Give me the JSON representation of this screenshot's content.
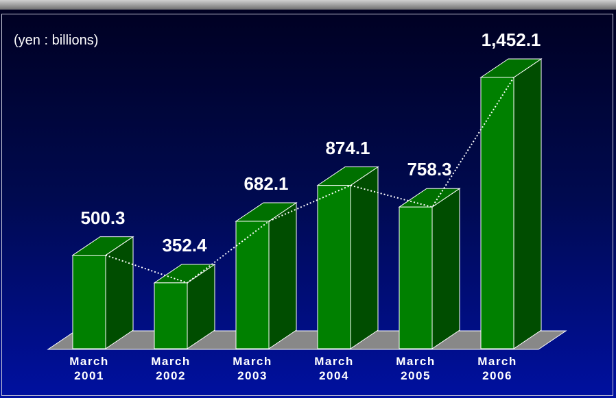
{
  "chart_data": {
    "type": "bar3d",
    "unit_label": "(yen : billions)",
    "categories": [
      "March 2001",
      "March 2002",
      "March 2003",
      "March 2004",
      "March 2005",
      "March 2006"
    ],
    "values": [
      500.3,
      352.4,
      682.1,
      874.1,
      758.3,
      1452.1
    ],
    "value_labels": [
      "500.3",
      "352.4",
      "682.1",
      "874.1",
      "758.3",
      "1,452.1"
    ],
    "color": "#008000",
    "trend_line": true
  }
}
